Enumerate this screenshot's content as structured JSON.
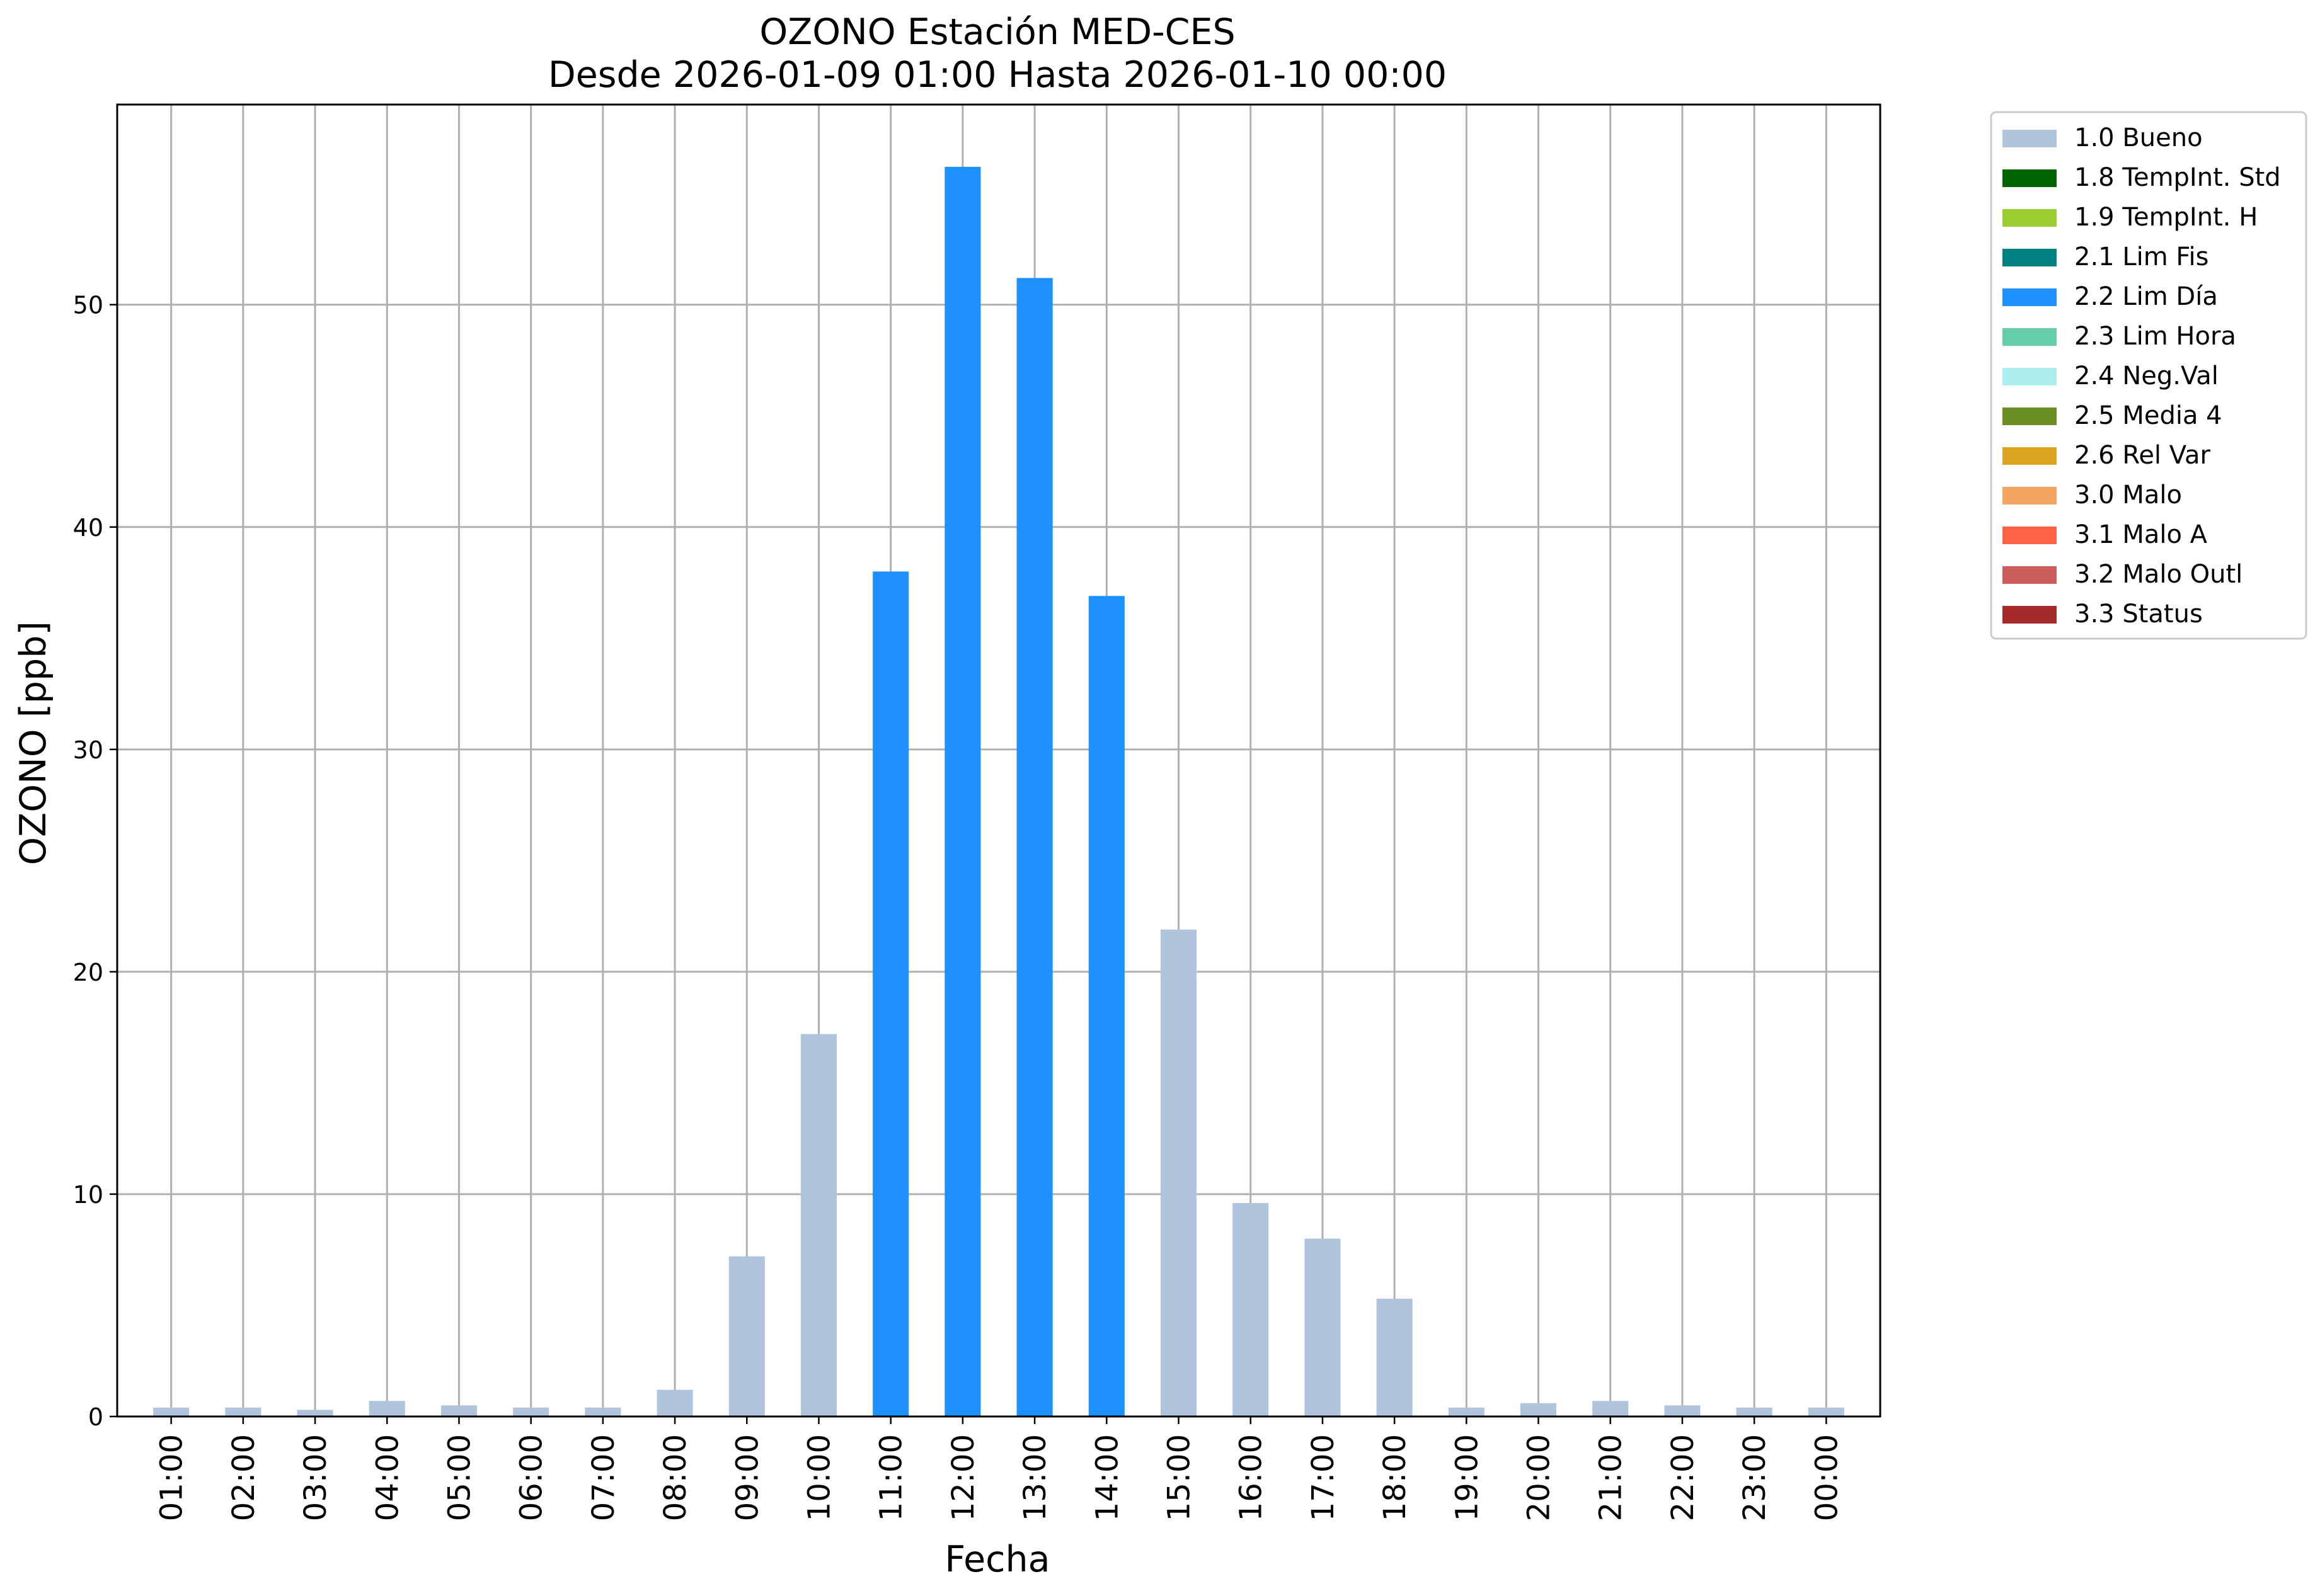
{
  "chart_data": {
    "type": "bar",
    "title": "OZONO Estación MED-CES",
    "subtitle": "Desde 2026-01-09 01:00 Hasta 2026-01-10 00:00",
    "xlabel": "Fecha",
    "ylabel": "OZONO [ppb]",
    "ylim": [
      0,
      59
    ],
    "yticks": [
      0,
      10,
      20,
      30,
      40,
      50
    ],
    "grid": true,
    "legend_position": "outside-top-right",
    "categories": [
      "01:00",
      "02:00",
      "03:00",
      "04:00",
      "05:00",
      "06:00",
      "07:00",
      "08:00",
      "09:00",
      "10:00",
      "11:00",
      "12:00",
      "13:00",
      "14:00",
      "15:00",
      "16:00",
      "17:00",
      "18:00",
      "19:00",
      "20:00",
      "21:00",
      "22:00",
      "23:00",
      "00:00"
    ],
    "values": [
      0.4,
      0.4,
      0.3,
      0.7,
      0.5,
      0.4,
      0.4,
      1.2,
      7.2,
      17.2,
      38.0,
      56.2,
      51.2,
      36.9,
      21.9,
      9.6,
      8.0,
      5.3,
      0.4,
      0.6,
      0.7,
      0.5,
      0.4,
      0.4
    ],
    "flags": [
      "1.0",
      "1.0",
      "1.0",
      "1.0",
      "1.0",
      "1.0",
      "1.0",
      "1.0",
      "1.0",
      "1.0",
      "2.2",
      "2.2",
      "2.2",
      "2.2",
      "1.0",
      "1.0",
      "1.0",
      "1.0",
      "1.0",
      "1.0",
      "1.0",
      "1.0",
      "1.0",
      "1.0"
    ],
    "legend": [
      {
        "code": "1.0",
        "label": "1.0 Bueno",
        "color": "#B0C4DE"
      },
      {
        "code": "1.8",
        "label": "1.8 TempInt. Std",
        "color": "#006400"
      },
      {
        "code": "1.9",
        "label": "1.9 TempInt. H",
        "color": "#9ACD32"
      },
      {
        "code": "2.1",
        "label": "2.1 Lim Fis",
        "color": "#008080"
      },
      {
        "code": "2.2",
        "label": "2.2 Lim Día",
        "color": "#1E90FF"
      },
      {
        "code": "2.3",
        "label": "2.3 Lim Hora",
        "color": "#66CDAA"
      },
      {
        "code": "2.4",
        "label": "2.4 Neg.Val",
        "color": "#AFEEEE"
      },
      {
        "code": "2.5",
        "label": "2.5 Media 4",
        "color": "#6B8E23"
      },
      {
        "code": "2.6",
        "label": "2.6 Rel Var",
        "color": "#DAA520"
      },
      {
        "code": "3.0",
        "label": "3.0 Malo",
        "color": "#F4A460"
      },
      {
        "code": "3.1",
        "label": "3.1 Malo A",
        "color": "#FF6347"
      },
      {
        "code": "3.2",
        "label": "3.2 Malo Outl",
        "color": "#CD5C5C"
      },
      {
        "code": "3.3",
        "label": "3.3 Status",
        "color": "#A52A2A"
      }
    ]
  }
}
